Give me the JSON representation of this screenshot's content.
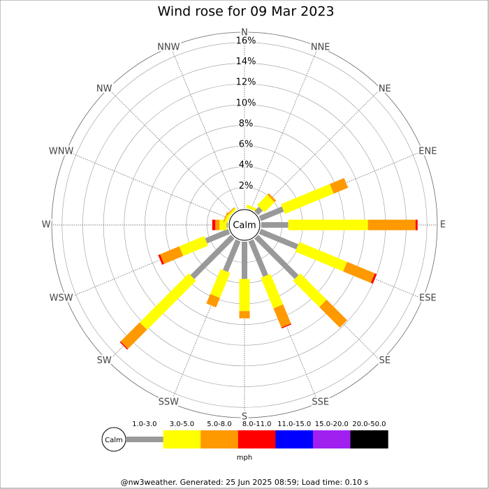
{
  "chart_data": {
    "type": "windrose",
    "title": "Wind rose for 09 Mar 2023",
    "categories": [
      "N",
      "NNE",
      "NE",
      "ENE",
      "E",
      "ESE",
      "SE",
      "SSE",
      "S",
      "SSW",
      "SW",
      "WSW",
      "W",
      "WNW",
      "NW",
      "NNW"
    ],
    "calm_label": "Calm",
    "unit": "mph",
    "footer": "@nw3weather. Generated: 25 Jun 2025 08:59; Load time: 0.10 s",
    "rlim": [
      0,
      17
    ],
    "rticks": [
      {
        "value": 2,
        "label": "2%"
      },
      {
        "value": 4,
        "label": "4%"
      },
      {
        "value": 6,
        "label": "6%"
      },
      {
        "value": 8,
        "label": "8%"
      },
      {
        "value": 10,
        "label": "10%"
      },
      {
        "value": 12,
        "label": "12%"
      },
      {
        "value": 14,
        "label": "14%"
      },
      {
        "value": 16,
        "label": "16%"
      }
    ],
    "series": [
      {
        "name": "1.0-3.0",
        "color": "#999999",
        "values": [
          0,
          0,
          0.6,
          2.4,
          2.6,
          3.9,
          5.5,
          3.7,
          3.6,
          3.2,
          5.5,
          2.4,
          0.1,
          0,
          0,
          0
        ]
      },
      {
        "name": "3.0-5.0",
        "color": "#ffff00",
        "values": [
          0,
          0.3,
          1.4,
          5.1,
          7.7,
          5.0,
          3.6,
          3.2,
          3.1,
          2.6,
          6.7,
          2.6,
          0.7,
          0.3,
          0.2,
          0
        ]
      },
      {
        "name": "5.0-8.0",
        "color": "#ff9900",
        "values": [
          0,
          0,
          0.2,
          1.5,
          4.6,
          2.9,
          2.8,
          2.0,
          0.7,
          1.0,
          2.6,
          2.0,
          0.4,
          0.1,
          0.1,
          0
        ]
      },
      {
        "name": "8.0-11.0",
        "color": "#ff0000",
        "values": [
          0,
          0,
          0,
          0,
          0.2,
          0.2,
          0,
          0.1,
          0,
          0,
          0.1,
          0.2,
          0.3,
          0,
          0,
          0
        ]
      },
      {
        "name": "11.0-15.0",
        "color": "#0000ff",
        "values": [
          0,
          0,
          0,
          0,
          0,
          0,
          0,
          0,
          0,
          0,
          0,
          0,
          0,
          0,
          0,
          0
        ]
      },
      {
        "name": "15.0-20.0",
        "color": "#a020f0",
        "values": [
          0,
          0,
          0,
          0,
          0,
          0,
          0,
          0,
          0,
          0,
          0,
          0,
          0,
          0,
          0,
          0
        ]
      },
      {
        "name": "20.0-50.0",
        "color": "#000000",
        "values": [
          0,
          0,
          0,
          0,
          0,
          0,
          0,
          0,
          0,
          0,
          0,
          0,
          0,
          0,
          0,
          0
        ]
      }
    ]
  }
}
